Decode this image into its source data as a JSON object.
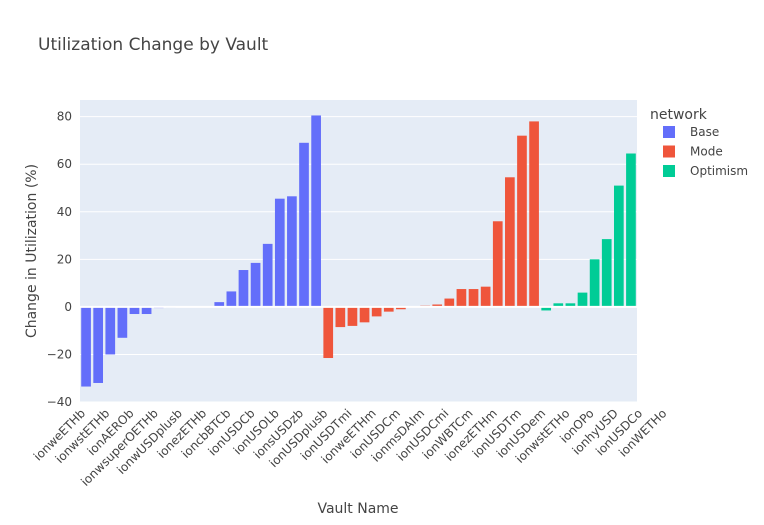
{
  "chart_data": {
    "type": "bar",
    "title": "Utilization Change by Vault",
    "xlabel": "Vault Name",
    "ylabel": "Change in Utilization (%)",
    "ylim": [
      -40,
      87
    ],
    "yticks": [
      -40,
      -20,
      0,
      20,
      40,
      60,
      80
    ],
    "ytick_labels": [
      "−40",
      "−20",
      "0",
      "20",
      "40",
      "60",
      "80"
    ],
    "x_tick_labels": [
      "ionweETHb",
      "ionwstETHb",
      "ionAEROb",
      "ionwsuperOETHb",
      "ionwUSDplusb",
      "ionezETHb",
      "ioncbBTCb",
      "ionUSDCb",
      "ionUSOLb",
      "ionsUSDzb",
      "ionUSDplusb",
      "ionUSDTmi",
      "ionweETHm",
      "ionUSDCm",
      "ionmsDAIm",
      "ionUSDCmi",
      "ionWBTCm",
      "ionezETHm",
      "ionUSDTm",
      "ionUSDem",
      "ionwstETHo",
      "ionOPo",
      "ionhyUSD",
      "ionUSDCo",
      "ionWETHo"
    ],
    "grid": true,
    "legend_title": "network",
    "legend_position": "top-right",
    "series": [
      {
        "name": "Base",
        "color": "#636efa",
        "values": [
          -33.5,
          -32,
          -20,
          -13,
          -3,
          -3,
          -0.5,
          -0.3,
          -0.2,
          -0.2,
          0,
          2,
          6.5,
          15.5,
          18.5,
          26.5,
          45.5,
          46.5,
          69,
          80.5
        ]
      },
      {
        "name": "Mode",
        "color": "#ef553b",
        "values": [
          -21.5,
          -8.5,
          -8,
          -6.5,
          -4,
          -2,
          -1,
          0.2,
          0.5,
          1,
          3.5,
          7.5,
          7.5,
          8.5,
          36,
          54.5,
          72,
          78
        ]
      },
      {
        "name": "Optimism",
        "color": "#00cc96",
        "values": [
          -1.5,
          1.5,
          1.5,
          6,
          20,
          28.5,
          51,
          64.5
        ]
      }
    ]
  }
}
